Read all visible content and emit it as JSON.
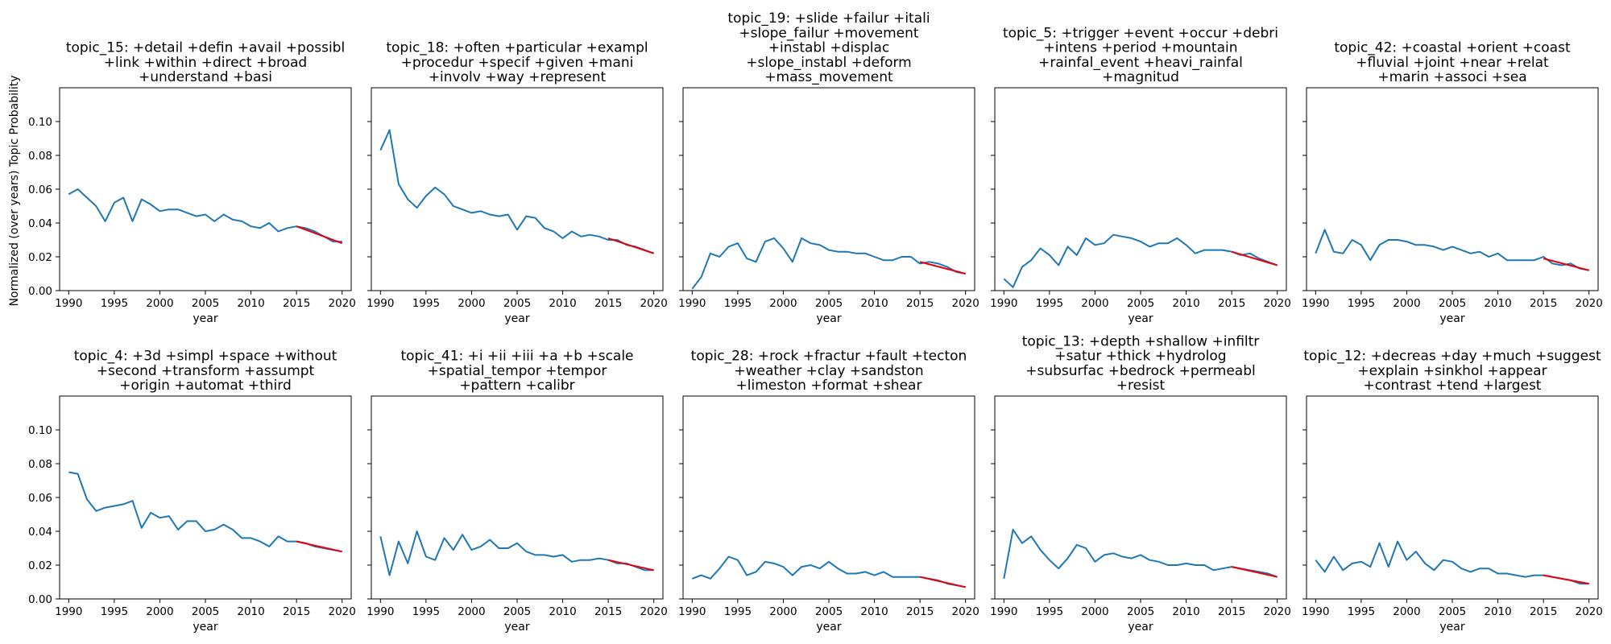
{
  "figure": {
    "ylabel": "Normalized (over years) Topic Probability"
  },
  "colors": {
    "series": "#1f77b4",
    "trend": "#e8000b",
    "axes": "#000000"
  },
  "chart_data": [
    {
      "type": "line",
      "title_lines": [
        "topic_15: +detail +defin +avail +possibl",
        "+link +within +direct +broad",
        "+understand +basi"
      ],
      "xlabel": "year",
      "xlim": [
        1989,
        2021
      ],
      "ylim": [
        0,
        0.12
      ],
      "xticks": [
        1990,
        1995,
        2000,
        2005,
        2010,
        2015,
        2020
      ],
      "yticks": [
        0.0,
        0.02,
        0.04,
        0.06,
        0.08,
        0.1
      ],
      "ytick_labels": [
        "0.00",
        "0.02",
        "0.04",
        "0.06",
        "0.08",
        "0.10"
      ],
      "x": [
        1990,
        1991,
        1992,
        1993,
        1994,
        1995,
        1996,
        1997,
        1998,
        1999,
        2000,
        2001,
        2002,
        2003,
        2004,
        2005,
        2006,
        2007,
        2008,
        2009,
        2010,
        2011,
        2012,
        2013,
        2014,
        2015,
        2016,
        2017,
        2018,
        2019,
        2020
      ],
      "series": [
        {
          "values": [
            0.057,
            0.06,
            0.055,
            0.05,
            0.041,
            0.052,
            0.055,
            0.041,
            0.054,
            0.051,
            0.047,
            0.048,
            0.048,
            0.046,
            0.044,
            0.045,
            0.041,
            0.045,
            0.042,
            0.041,
            0.038,
            0.037,
            0.04,
            0.035,
            0.037,
            0.038,
            0.037,
            0.035,
            0.032,
            0.029,
            0.029
          ]
        },
        {
          "x": [
            2015,
            2020
          ],
          "values": [
            0.038,
            0.028
          ]
        }
      ]
    },
    {
      "type": "line",
      "title_lines": [
        "topic_18: +often +particular +exampl",
        "+procedur +specif +given +mani",
        "+involv +way +represent"
      ],
      "xlabel": "year",
      "xlim": [
        1989,
        2021
      ],
      "ylim": [
        0,
        0.12
      ],
      "xticks": [
        1990,
        1995,
        2000,
        2005,
        2010,
        2015,
        2020
      ],
      "yticks": [
        0.0,
        0.02,
        0.04,
        0.06,
        0.08,
        0.1
      ],
      "ytick_labels": [
        "0.00",
        "0.02",
        "0.04",
        "0.06",
        "0.08",
        "0.10"
      ],
      "x": [
        1990,
        1991,
        1992,
        1993,
        1994,
        1995,
        1996,
        1997,
        1998,
        1999,
        2000,
        2001,
        2002,
        2003,
        2004,
        2005,
        2006,
        2007,
        2008,
        2009,
        2010,
        2011,
        2012,
        2013,
        2014,
        2015,
        2016,
        2017,
        2018,
        2019,
        2020
      ],
      "series": [
        {
          "values": [
            0.083,
            0.095,
            0.063,
            0.054,
            0.049,
            0.056,
            0.061,
            0.057,
            0.05,
            0.048,
            0.046,
            0.047,
            0.045,
            0.044,
            0.045,
            0.036,
            0.044,
            0.043,
            0.037,
            0.035,
            0.031,
            0.035,
            0.032,
            0.033,
            0.032,
            0.03,
            0.03,
            0.027,
            0.026,
            0.024,
            0.022
          ]
        },
        {
          "x": [
            2015,
            2020
          ],
          "values": [
            0.031,
            0.022
          ]
        }
      ]
    },
    {
      "type": "line",
      "title_lines": [
        "topic_19: +slide +failur +itali",
        "+slope_failur +movement",
        "+instabl +displac",
        "+slope_instabl +deform",
        "+mass_movement"
      ],
      "xlabel": "year",
      "xlim": [
        1989,
        2021
      ],
      "ylim": [
        0,
        0.12
      ],
      "xticks": [
        1990,
        1995,
        2000,
        2005,
        2010,
        2015,
        2020
      ],
      "yticks": [
        0.0,
        0.02,
        0.04,
        0.06,
        0.08,
        0.1
      ],
      "ytick_labels": [
        "0.00",
        "0.02",
        "0.04",
        "0.06",
        "0.08",
        "0.10"
      ],
      "x": [
        1990,
        1991,
        1992,
        1993,
        1994,
        1995,
        1996,
        1997,
        1998,
        1999,
        2000,
        2001,
        2002,
        2003,
        2004,
        2005,
        2006,
        2007,
        2008,
        2009,
        2010,
        2011,
        2012,
        2013,
        2014,
        2015,
        2016,
        2017,
        2018,
        2019,
        2020
      ],
      "series": [
        {
          "values": [
            0.001,
            0.008,
            0.022,
            0.02,
            0.026,
            0.028,
            0.019,
            0.017,
            0.029,
            0.031,
            0.025,
            0.017,
            0.031,
            0.028,
            0.027,
            0.024,
            0.023,
            0.023,
            0.022,
            0.022,
            0.02,
            0.018,
            0.018,
            0.02,
            0.02,
            0.016,
            0.017,
            0.016,
            0.014,
            0.011,
            0.01
          ]
        },
        {
          "x": [
            2015,
            2020
          ],
          "values": [
            0.017,
            0.01
          ]
        }
      ]
    },
    {
      "type": "line",
      "title_lines": [
        "topic_5: +trigger +event +occur +debri",
        "+intens +period +mountain",
        "+rainfal_event +heavi_rainfal",
        "+magnitud"
      ],
      "xlabel": "year",
      "xlim": [
        1989,
        2021
      ],
      "ylim": [
        0,
        0.12
      ],
      "xticks": [
        1990,
        1995,
        2000,
        2005,
        2010,
        2015,
        2020
      ],
      "yticks": [
        0.0,
        0.02,
        0.04,
        0.06,
        0.08,
        0.1
      ],
      "ytick_labels": [
        "0.00",
        "0.02",
        "0.04",
        "0.06",
        "0.08",
        "0.10"
      ],
      "x": [
        1990,
        1991,
        1992,
        1993,
        1994,
        1995,
        1996,
        1997,
        1998,
        1999,
        2000,
        2001,
        2002,
        2003,
        2004,
        2005,
        2006,
        2007,
        2008,
        2009,
        2010,
        2011,
        2012,
        2013,
        2014,
        2015,
        2016,
        2017,
        2018,
        2019,
        2020
      ],
      "series": [
        {
          "values": [
            0.007,
            0.002,
            0.014,
            0.018,
            0.025,
            0.021,
            0.015,
            0.026,
            0.021,
            0.031,
            0.027,
            0.028,
            0.033,
            0.032,
            0.031,
            0.029,
            0.026,
            0.028,
            0.028,
            0.031,
            0.027,
            0.022,
            0.024,
            0.024,
            0.024,
            0.023,
            0.021,
            0.022,
            0.019,
            0.017,
            0.015
          ]
        },
        {
          "x": [
            2015,
            2020
          ],
          "values": [
            0.023,
            0.015
          ]
        }
      ]
    },
    {
      "type": "line",
      "title_lines": [
        "topic_42: +coastal +orient +coast",
        "+fluvial +joint +near +relat",
        "+marin +associ +sea"
      ],
      "xlabel": "year",
      "xlim": [
        1989,
        2021
      ],
      "ylim": [
        0,
        0.12
      ],
      "xticks": [
        1990,
        1995,
        2000,
        2005,
        2010,
        2015,
        2020
      ],
      "yticks": [
        0.0,
        0.02,
        0.04,
        0.06,
        0.08,
        0.1
      ],
      "ytick_labels": [
        "0.00",
        "0.02",
        "0.04",
        "0.06",
        "0.08",
        "0.10"
      ],
      "x": [
        1990,
        1991,
        1992,
        1993,
        1994,
        1995,
        1996,
        1997,
        1998,
        1999,
        2000,
        2001,
        2002,
        2003,
        2004,
        2005,
        2006,
        2007,
        2008,
        2009,
        2010,
        2011,
        2012,
        2013,
        2014,
        2015,
        2016,
        2017,
        2018,
        2019,
        2020
      ],
      "series": [
        {
          "values": [
            0.022,
            0.036,
            0.023,
            0.022,
            0.03,
            0.027,
            0.018,
            0.027,
            0.03,
            0.03,
            0.029,
            0.027,
            0.027,
            0.026,
            0.024,
            0.026,
            0.024,
            0.022,
            0.023,
            0.02,
            0.022,
            0.018,
            0.018,
            0.018,
            0.018,
            0.02,
            0.016,
            0.015,
            0.016,
            0.013,
            0.012
          ]
        },
        {
          "x": [
            2015,
            2020
          ],
          "values": [
            0.019,
            0.012
          ]
        }
      ]
    },
    {
      "type": "line",
      "title_lines": [
        "topic_4: +3d +simpl +space +without",
        "+second +transform +assumpt",
        "+origin +automat +third"
      ],
      "xlabel": "year",
      "xlim": [
        1989,
        2021
      ],
      "ylim": [
        0,
        0.12
      ],
      "xticks": [
        1990,
        1995,
        2000,
        2005,
        2010,
        2015,
        2020
      ],
      "yticks": [
        0.0,
        0.02,
        0.04,
        0.06,
        0.08,
        0.1
      ],
      "ytick_labels": [
        "0.00",
        "0.02",
        "0.04",
        "0.06",
        "0.08",
        "0.10"
      ],
      "x": [
        1990,
        1991,
        1992,
        1993,
        1994,
        1995,
        1996,
        1997,
        1998,
        1999,
        2000,
        2001,
        2002,
        2003,
        2004,
        2005,
        2006,
        2007,
        2008,
        2009,
        2010,
        2011,
        2012,
        2013,
        2014,
        2015,
        2016,
        2017,
        2018,
        2019,
        2020
      ],
      "series": [
        {
          "values": [
            0.075,
            0.074,
            0.059,
            0.052,
            0.054,
            0.055,
            0.056,
            0.058,
            0.042,
            0.051,
            0.048,
            0.049,
            0.041,
            0.046,
            0.046,
            0.04,
            0.041,
            0.044,
            0.041,
            0.036,
            0.036,
            0.034,
            0.031,
            0.037,
            0.034,
            0.034,
            0.033,
            0.031,
            0.03,
            0.029,
            0.028
          ]
        },
        {
          "x": [
            2015,
            2020
          ],
          "values": [
            0.034,
            0.028
          ]
        }
      ]
    },
    {
      "type": "line",
      "title_lines": [
        "topic_41: +i +ii +iii +a +b +scale",
        "+spatial_tempor +tempor",
        "+pattern +calibr"
      ],
      "xlabel": "year",
      "xlim": [
        1989,
        2021
      ],
      "ylim": [
        0,
        0.12
      ],
      "xticks": [
        1990,
        1995,
        2000,
        2005,
        2010,
        2015,
        2020
      ],
      "yticks": [
        0.0,
        0.02,
        0.04,
        0.06,
        0.08,
        0.1
      ],
      "ytick_labels": [
        "0.00",
        "0.02",
        "0.04",
        "0.06",
        "0.08",
        "0.10"
      ],
      "x": [
        1990,
        1991,
        1992,
        1993,
        1994,
        1995,
        1996,
        1997,
        1998,
        1999,
        2000,
        2001,
        2002,
        2003,
        2004,
        2005,
        2006,
        2007,
        2008,
        2009,
        2010,
        2011,
        2012,
        2013,
        2014,
        2015,
        2016,
        2017,
        2018,
        2019,
        2020
      ],
      "series": [
        {
          "values": [
            0.037,
            0.014,
            0.034,
            0.021,
            0.04,
            0.025,
            0.023,
            0.036,
            0.029,
            0.038,
            0.029,
            0.031,
            0.035,
            0.03,
            0.03,
            0.033,
            0.028,
            0.026,
            0.026,
            0.025,
            0.026,
            0.022,
            0.023,
            0.023,
            0.024,
            0.023,
            0.021,
            0.021,
            0.019,
            0.017,
            0.017
          ]
        },
        {
          "x": [
            2015,
            2020
          ],
          "values": [
            0.023,
            0.017
          ]
        }
      ]
    },
    {
      "type": "line",
      "title_lines": [
        "topic_28: +rock +fractur +fault +tecton",
        "+weather +clay +sandston",
        "+limeston +format +shear"
      ],
      "xlabel": "year",
      "xlim": [
        1989,
        2021
      ],
      "ylim": [
        0,
        0.12
      ],
      "xticks": [
        1990,
        1995,
        2000,
        2005,
        2010,
        2015,
        2020
      ],
      "yticks": [
        0.0,
        0.02,
        0.04,
        0.06,
        0.08,
        0.1
      ],
      "ytick_labels": [
        "0.00",
        "0.02",
        "0.04",
        "0.06",
        "0.08",
        "0.10"
      ],
      "x": [
        1990,
        1991,
        1992,
        1993,
        1994,
        1995,
        1996,
        1997,
        1998,
        1999,
        2000,
        2001,
        2002,
        2003,
        2004,
        2005,
        2006,
        2007,
        2008,
        2009,
        2010,
        2011,
        2012,
        2013,
        2014,
        2015,
        2016,
        2017,
        2018,
        2019,
        2020
      ],
      "series": [
        {
          "values": [
            0.012,
            0.014,
            0.012,
            0.018,
            0.025,
            0.023,
            0.014,
            0.016,
            0.022,
            0.021,
            0.019,
            0.014,
            0.019,
            0.02,
            0.018,
            0.022,
            0.018,
            0.015,
            0.015,
            0.016,
            0.014,
            0.016,
            0.013,
            0.013,
            0.013,
            0.013,
            0.012,
            0.011,
            0.009,
            0.008,
            0.007
          ]
        },
        {
          "x": [
            2015,
            2020
          ],
          "values": [
            0.013,
            0.007
          ]
        }
      ]
    },
    {
      "type": "line",
      "title_lines": [
        "topic_13: +depth +shallow +infiltr",
        "+satur +thick +hydrolog",
        "+subsurfac +bedrock +permeabl",
        "+resist"
      ],
      "xlabel": "year",
      "xlim": [
        1989,
        2021
      ],
      "ylim": [
        0,
        0.12
      ],
      "xticks": [
        1990,
        1995,
        2000,
        2005,
        2010,
        2015,
        2020
      ],
      "yticks": [
        0.0,
        0.02,
        0.04,
        0.06,
        0.08,
        0.1
      ],
      "ytick_labels": [
        "0.00",
        "0.02",
        "0.04",
        "0.06",
        "0.08",
        "0.10"
      ],
      "x": [
        1990,
        1991,
        1992,
        1993,
        1994,
        1995,
        1996,
        1997,
        1998,
        1999,
        2000,
        2001,
        2002,
        2003,
        2004,
        2005,
        2006,
        2007,
        2008,
        2009,
        2010,
        2011,
        2012,
        2013,
        2014,
        2015,
        2016,
        2017,
        2018,
        2019,
        2020
      ],
      "series": [
        {
          "values": [
            0.012,
            0.041,
            0.033,
            0.037,
            0.029,
            0.023,
            0.018,
            0.024,
            0.032,
            0.03,
            0.022,
            0.026,
            0.027,
            0.025,
            0.024,
            0.026,
            0.023,
            0.022,
            0.02,
            0.02,
            0.021,
            0.02,
            0.02,
            0.017,
            0.018,
            0.019,
            0.018,
            0.017,
            0.016,
            0.015,
            0.013
          ]
        },
        {
          "x": [
            2015,
            2020
          ],
          "values": [
            0.019,
            0.013
          ]
        }
      ]
    },
    {
      "type": "line",
      "title_lines": [
        "topic_12: +decreas +day +much +suggest",
        "+explain +sinkhol +appear",
        "+contrast +tend +largest"
      ],
      "xlabel": "year",
      "xlim": [
        1989,
        2021
      ],
      "ylim": [
        0,
        0.12
      ],
      "xticks": [
        1990,
        1995,
        2000,
        2005,
        2010,
        2015,
        2020
      ],
      "yticks": [
        0.0,
        0.02,
        0.04,
        0.06,
        0.08,
        0.1
      ],
      "ytick_labels": [
        "0.00",
        "0.02",
        "0.04",
        "0.06",
        "0.08",
        "0.10"
      ],
      "x": [
        1990,
        1991,
        1992,
        1993,
        1994,
        1995,
        1996,
        1997,
        1998,
        1999,
        2000,
        2001,
        2002,
        2003,
        2004,
        2005,
        2006,
        2007,
        2008,
        2009,
        2010,
        2011,
        2012,
        2013,
        2014,
        2015,
        2016,
        2017,
        2018,
        2019,
        2020
      ],
      "series": [
        {
          "values": [
            0.023,
            0.016,
            0.025,
            0.017,
            0.021,
            0.022,
            0.019,
            0.033,
            0.019,
            0.034,
            0.023,
            0.028,
            0.021,
            0.017,
            0.023,
            0.022,
            0.018,
            0.016,
            0.018,
            0.018,
            0.015,
            0.015,
            0.014,
            0.013,
            0.014,
            0.014,
            0.013,
            0.012,
            0.011,
            0.009,
            0.009
          ]
        },
        {
          "x": [
            2015,
            2020
          ],
          "values": [
            0.014,
            0.009
          ]
        }
      ]
    }
  ]
}
